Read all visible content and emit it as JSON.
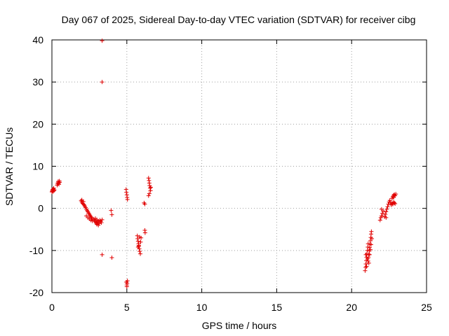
{
  "chart_data": {
    "type": "scatter",
    "title": "Day 067 of 2025, Sidereal Day-to-day VTEC variation (SDTVAR) for receiver cibg",
    "xlabel": "GPS time / hours",
    "ylabel": "SDTVAR / TECUs",
    "xlim": [
      0,
      25
    ],
    "ylim": [
      -20,
      40
    ],
    "xticks": [
      0,
      5,
      10,
      15,
      20,
      25
    ],
    "yticks": [
      -20,
      -10,
      0,
      10,
      20,
      30,
      40
    ],
    "grid": true,
    "marker": "+",
    "color": "#e00000",
    "series": [
      {
        "name": "SDTVAR",
        "points": [
          [
            0.0,
            3.9
          ],
          [
            0.02,
            4.1
          ],
          [
            0.04,
            4.3
          ],
          [
            0.06,
            4.5
          ],
          [
            0.08,
            4.0
          ],
          [
            0.1,
            4.6
          ],
          [
            0.12,
            4.8
          ],
          [
            0.14,
            4.2
          ],
          [
            0.16,
            4.4
          ],
          [
            0.35,
            5.5
          ],
          [
            0.38,
            5.8
          ],
          [
            0.4,
            6.1
          ],
          [
            0.42,
            6.4
          ],
          [
            0.45,
            6.0
          ],
          [
            0.47,
            5.7
          ],
          [
            0.5,
            6.5
          ],
          [
            0.52,
            6.2
          ],
          [
            1.95,
            1.8
          ],
          [
            2.0,
            1.5
          ],
          [
            2.05,
            1.2
          ],
          [
            2.1,
            1.0
          ],
          [
            2.15,
            0.8
          ],
          [
            2.2,
            0.5
          ],
          [
            2.0,
            2.0
          ],
          [
            2.1,
            1.6
          ],
          [
            2.25,
            0.2
          ],
          [
            2.3,
            -0.2
          ],
          [
            2.35,
            -0.5
          ],
          [
            2.4,
            -0.8
          ],
          [
            2.45,
            -1.1
          ],
          [
            2.5,
            -1.4
          ],
          [
            2.55,
            -1.7
          ],
          [
            2.6,
            -2.0
          ],
          [
            2.65,
            -2.2
          ],
          [
            2.7,
            -2.5
          ],
          [
            2.3,
            -1.8
          ],
          [
            2.4,
            -2.2
          ],
          [
            2.5,
            -2.5
          ],
          [
            2.6,
            -2.8
          ],
          [
            2.7,
            -3.0
          ],
          [
            2.8,
            -2.6
          ],
          [
            2.85,
            -2.9
          ],
          [
            2.9,
            -3.2
          ],
          [
            2.95,
            -3.5
          ],
          [
            3.0,
            -3.8
          ],
          [
            3.05,
            -3.3
          ],
          [
            3.1,
            -3.0
          ],
          [
            3.15,
            -3.6
          ],
          [
            3.2,
            -2.8
          ],
          [
            3.25,
            -3.1
          ],
          [
            3.3,
            -3.4
          ],
          [
            3.35,
            -2.7
          ],
          [
            2.9,
            -2.4
          ],
          [
            3.0,
            -2.7
          ],
          [
            3.1,
            -4.0
          ],
          [
            3.35,
            39.8
          ],
          [
            3.35,
            30.0
          ],
          [
            3.35,
            -11.0
          ],
          [
            3.95,
            -0.5
          ],
          [
            4.0,
            -1.5
          ],
          [
            4.0,
            -11.7
          ],
          [
            4.95,
            4.5
          ],
          [
            4.97,
            3.8
          ],
          [
            5.0,
            3.2
          ],
          [
            5.02,
            2.6
          ],
          [
            5.04,
            2.1
          ],
          [
            4.97,
            -17.5
          ],
          [
            5.0,
            -18.2
          ],
          [
            5.02,
            -17.8
          ],
          [
            5.04,
            -17.2
          ],
          [
            5.0,
            -18.6
          ],
          [
            5.7,
            -6.5
          ],
          [
            5.72,
            -7.2
          ],
          [
            5.75,
            -7.8
          ],
          [
            5.78,
            -8.4
          ],
          [
            5.8,
            -9.0
          ],
          [
            5.83,
            -9.6
          ],
          [
            5.86,
            -10.2
          ],
          [
            5.9,
            -10.8
          ],
          [
            5.92,
            -8.0
          ],
          [
            5.95,
            -7.0
          ],
          [
            5.75,
            -9.2
          ],
          [
            5.85,
            -6.8
          ],
          [
            5.8,
            -8.8
          ],
          [
            6.2,
            -5.2
          ],
          [
            6.22,
            -5.8
          ],
          [
            6.15,
            1.3
          ],
          [
            6.2,
            1.0
          ],
          [
            6.45,
            7.2
          ],
          [
            6.48,
            6.6
          ],
          [
            6.5,
            6.0
          ],
          [
            6.52,
            5.4
          ],
          [
            6.55,
            4.8
          ],
          [
            6.58,
            4.2
          ],
          [
            6.5,
            3.5
          ],
          [
            6.6,
            5.0
          ],
          [
            6.45,
            3.0
          ],
          [
            20.9,
            -14.8
          ],
          [
            20.93,
            -14.0
          ],
          [
            20.95,
            -13.2
          ],
          [
            20.98,
            -12.4
          ],
          [
            21.0,
            -11.6
          ],
          [
            21.02,
            -10.8
          ],
          [
            21.05,
            -10.0
          ],
          [
            21.08,
            -9.2
          ],
          [
            21.1,
            -8.4
          ],
          [
            20.95,
            -11.0
          ],
          [
            21.0,
            -13.8
          ],
          [
            21.05,
            -12.0
          ],
          [
            21.1,
            -12.5
          ],
          [
            21.12,
            -11.7
          ],
          [
            21.15,
            -10.9
          ],
          [
            21.18,
            -10.1
          ],
          [
            21.2,
            -9.3
          ],
          [
            21.22,
            -8.5
          ],
          [
            21.25,
            -7.7
          ],
          [
            21.28,
            -6.9
          ],
          [
            21.3,
            -6.1
          ],
          [
            21.32,
            -5.5
          ],
          [
            21.2,
            -11.0
          ],
          [
            21.25,
            -9.8
          ],
          [
            21.3,
            -8.6
          ],
          [
            21.35,
            -7.2
          ],
          [
            21.15,
            -13.0
          ],
          [
            21.9,
            -2.8
          ],
          [
            21.95,
            -2.2
          ],
          [
            22.0,
            -1.8
          ],
          [
            22.05,
            -1.2
          ],
          [
            22.1,
            -0.6
          ],
          [
            22.0,
            -0.2
          ],
          [
            22.2,
            -2.0
          ],
          [
            22.25,
            -1.4
          ],
          [
            22.3,
            -0.8
          ],
          [
            22.35,
            -0.2
          ],
          [
            22.4,
            0.4
          ],
          [
            22.45,
            1.0
          ],
          [
            22.5,
            1.5
          ],
          [
            22.55,
            1.9
          ],
          [
            22.6,
            1.4
          ],
          [
            22.3,
            -2.2
          ],
          [
            22.65,
            0.8
          ],
          [
            22.7,
            1.2
          ],
          [
            22.75,
            1.0
          ],
          [
            22.8,
            1.5
          ],
          [
            22.85,
            1.3
          ],
          [
            22.9,
            1.1
          ],
          [
            22.7,
            2.4
          ],
          [
            22.75,
            2.8
          ],
          [
            22.8,
            3.1
          ],
          [
            22.85,
            3.3
          ],
          [
            22.9,
            3.0
          ],
          [
            22.95,
            3.4
          ],
          [
            22.8,
            2.6
          ]
        ]
      }
    ]
  }
}
